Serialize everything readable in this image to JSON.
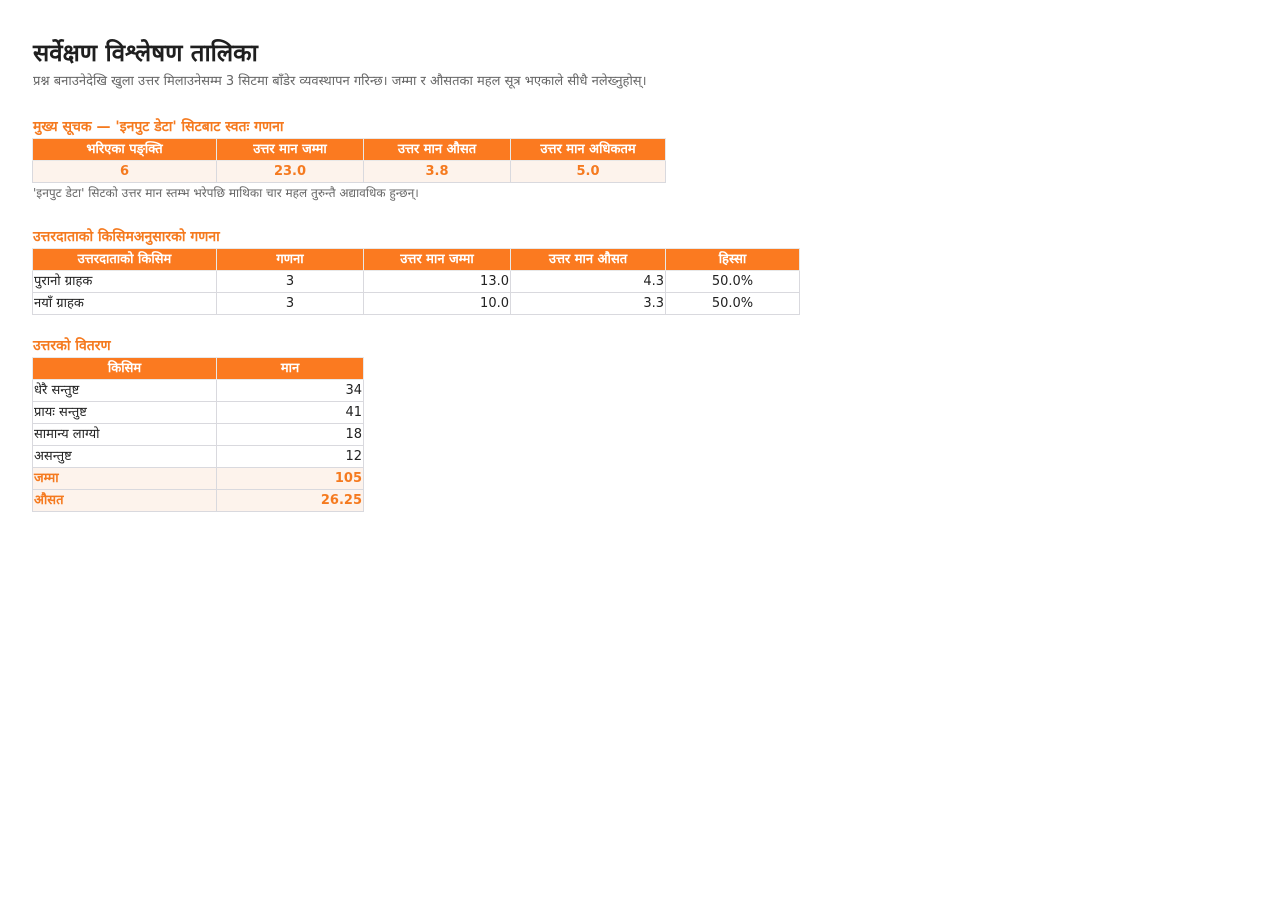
{
  "header": {
    "title": "सर्वेक्षण विश्लेषण तालिका",
    "subtitle": "प्रश्न बनाउनेदेखि खुला उत्तर मिलाउनेसम्म 3 सिटमा बाँडेर व्यवस्थापन गरिन्छ। जम्मा र औसतका महल सूत्र भएकाले सीधै नलेख्नुहोस्।"
  },
  "kpi": {
    "section_title": "मुख्य सूचक — 'इनपुट डेटा' सिटबाट स्वतः गणना",
    "headers": [
      "भरिएका पङ्क्ति",
      "उत्तर मान जम्मा",
      "उत्तर मान औसत",
      "उत्तर मान अधिकतम"
    ],
    "values": [
      "6",
      "23.0",
      "3.8",
      "5.0"
    ],
    "note": "'इनपुट डेटा' सिटको उत्तर मान स्तम्भ भरेपछि माथिका चार महल तुरुन्तै अद्यावधिक हुन्छन्।"
  },
  "respondents": {
    "section_title": "उत्तरदाताको किसिमअनुसारको गणना",
    "headers": [
      "उत्तरदाताको किसिम",
      "गणना",
      "उत्तर मान जम्मा",
      "उत्तर मान औसत",
      "हिस्सा"
    ],
    "rows": [
      [
        "पुरानो ग्राहक",
        "3",
        "13.0",
        "4.3",
        "50.0%"
      ],
      [
        "नयाँ ग्राहक",
        "3",
        "10.0",
        "3.3",
        "50.0%"
      ]
    ]
  },
  "distribution": {
    "section_title": "उत्तरको वितरण",
    "headers": [
      "किसिम",
      "मान"
    ],
    "rows": [
      [
        "धेरै सन्तुष्ट",
        "34"
      ],
      [
        "प्रायः सन्तुष्ट",
        "41"
      ],
      [
        "सामान्य लाग्यो",
        "18"
      ],
      [
        "असन्तुष्ट",
        "12"
      ]
    ],
    "summary": [
      [
        "जम्मा",
        "105"
      ],
      [
        "औसत",
        "26.25"
      ]
    ]
  },
  "colors": {
    "accent": "#fb7a20",
    "accent_text": "#f57a1f",
    "highlight_bg": "#fdf3ec"
  }
}
